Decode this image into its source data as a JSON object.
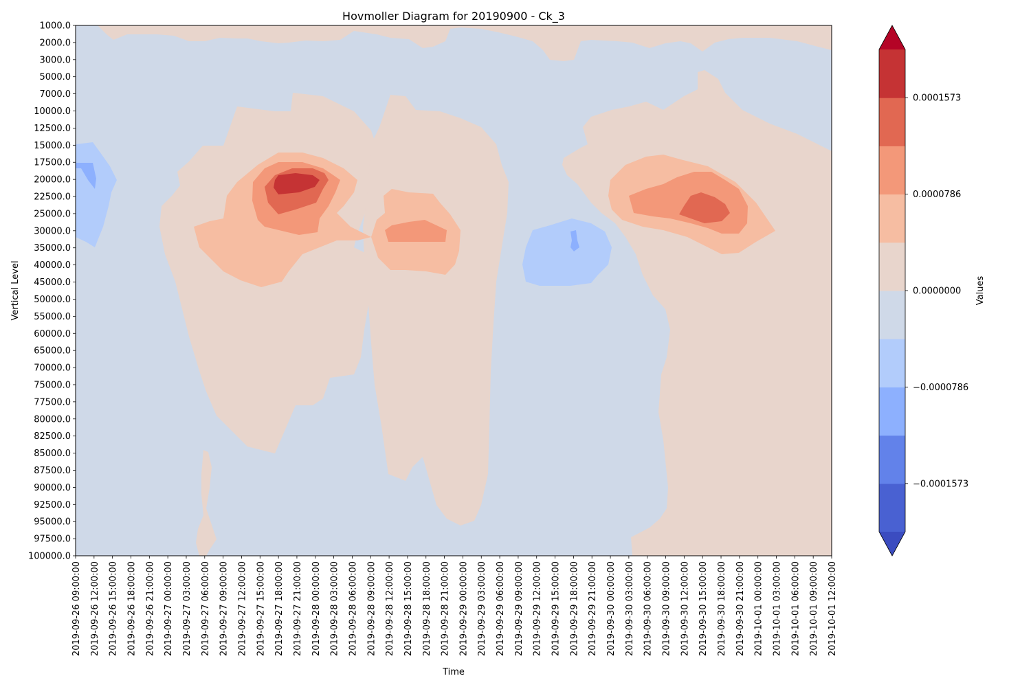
{
  "chart_data": {
    "type": "heatmap",
    "subtype": "filled-contour (Hovmoller diagram)",
    "title": "Hovmoller Diagram for 20190900 - Ck_3",
    "xlabel": "Time",
    "ylabel": "Vertical Level",
    "y_inverted": true,
    "x_ticks": [
      "2019-09-26 09:00:00",
      "2019-09-26 12:00:00",
      "2019-09-26 15:00:00",
      "2019-09-26 18:00:00",
      "2019-09-26 21:00:00",
      "2019-09-27 00:00:00",
      "2019-09-27 03:00:00",
      "2019-09-27 06:00:00",
      "2019-09-27 09:00:00",
      "2019-09-27 12:00:00",
      "2019-09-27 15:00:00",
      "2019-09-27 18:00:00",
      "2019-09-27 21:00:00",
      "2019-09-28 00:00:00",
      "2019-09-28 03:00:00",
      "2019-09-28 06:00:00",
      "2019-09-28 09:00:00",
      "2019-09-28 12:00:00",
      "2019-09-28 15:00:00",
      "2019-09-28 18:00:00",
      "2019-09-28 21:00:00",
      "2019-09-29 00:00:00",
      "2019-09-29 03:00:00",
      "2019-09-29 06:00:00",
      "2019-09-29 09:00:00",
      "2019-09-29 12:00:00",
      "2019-09-29 15:00:00",
      "2019-09-29 18:00:00",
      "2019-09-29 21:00:00",
      "2019-09-30 00:00:00",
      "2019-09-30 03:00:00",
      "2019-09-30 06:00:00",
      "2019-09-30 09:00:00",
      "2019-09-30 12:00:00",
      "2019-09-30 15:00:00",
      "2019-09-30 18:00:00",
      "2019-09-30 21:00:00",
      "2019-10-01 00:00:00",
      "2019-10-01 03:00:00",
      "2019-10-01 06:00:00",
      "2019-10-01 09:00:00",
      "2019-10-01 12:00:00"
    ],
    "y_ticks": [
      "1000.0",
      "2000.0",
      "3000.0",
      "5000.0",
      "7000.0",
      "10000.0",
      "12500.0",
      "15000.0",
      "17500.0",
      "20000.0",
      "22500.0",
      "25000.0",
      "30000.0",
      "35000.0",
      "40000.0",
      "45000.0",
      "50000.0",
      "55000.0",
      "60000.0",
      "65000.0",
      "70000.0",
      "75000.0",
      "77500.0",
      "80000.0",
      "82500.0",
      "85000.0",
      "87500.0",
      "90000.0",
      "92500.0",
      "95000.0",
      "97500.0",
      "100000.0"
    ],
    "colorbar": {
      "label": "Values",
      "extend": "both",
      "tick_labels": [
        "0.0001573",
        "0.0000786",
        "0.0000000",
        "−0.0000786",
        "−0.0001573"
      ],
      "tick_values": [
        0.0001573,
        7.86e-05,
        0.0,
        -7.86e-05,
        -0.0001573
      ],
      "levels": [
        -0.000236,
        -0.0001966,
        -0.0001573,
        -0.000118,
        -7.86e-05,
        -3.93e-05,
        0.0,
        3.93e-05,
        7.86e-05,
        0.000118,
        0.0001573,
        0.0001966,
        0.000236
      ],
      "colors": [
        "#3b4cc0",
        "#4961d2",
        "#6282ea",
        "#8db0fe",
        "#b2ccfb",
        "#cfd9e8",
        "#e8d5cc",
        "#f6bda2",
        "#f39879",
        "#e16852",
        "#c53334",
        "#b40426"
      ]
    },
    "regions": [
      {
        "name": "positive-band-left",
        "level": 3.93e-05,
        "color": "#e8d5cc",
        "x_range": [
          "2019-09-27 00:00:00",
          "2019-09-28 09:00:00"
        ],
        "y_range": [
          "7000.0",
          "100000.0"
        ]
      },
      {
        "name": "positive-band-middle",
        "level": 3.93e-05,
        "color": "#e8d5cc",
        "x_range": [
          "2019-09-28 09:00:00",
          "2019-09-29 03:00:00"
        ],
        "y_range": [
          "7000.0",
          "95000.0"
        ]
      },
      {
        "name": "positive-region-right",
        "level": 3.93e-05,
        "color": "#e8d5cc",
        "x_range": [
          "2019-09-29 21:00:00",
          "2019-10-01 12:00:00"
        ],
        "y_range": [
          "7000.0",
          "100000.0"
        ]
      },
      {
        "name": "max-core-day1",
        "level": 0.0001966,
        "color": "#c53334",
        "x_range": [
          "2019-09-27 18:00:00",
          "2019-09-28 00:00:00"
        ],
        "y_range": [
          "20000.0",
          "22500.0"
        ]
      },
      {
        "name": "max-core-day4",
        "level": 0.0001573,
        "color": "#e16852",
        "x_range": [
          "2019-09-30 12:00:00",
          "2019-09-30 18:00:00"
        ],
        "y_range": [
          "22500.0",
          "30000.0"
        ]
      },
      {
        "name": "min-core-left",
        "level": -7.86e-05,
        "color": "#8db0fe",
        "x_range": [
          "2019-09-26 09:00:00",
          "2019-09-26 12:00:00"
        ],
        "y_range": [
          "17500.0",
          "22500.0"
        ]
      },
      {
        "name": "negative-blob-day3",
        "level": -3.93e-05,
        "color": "#b2ccfb",
        "x_range": [
          "2019-09-29 12:00:00",
          "2019-09-30 00:00:00"
        ],
        "y_range": [
          "25000.0",
          "45000.0"
        ]
      }
    ]
  }
}
